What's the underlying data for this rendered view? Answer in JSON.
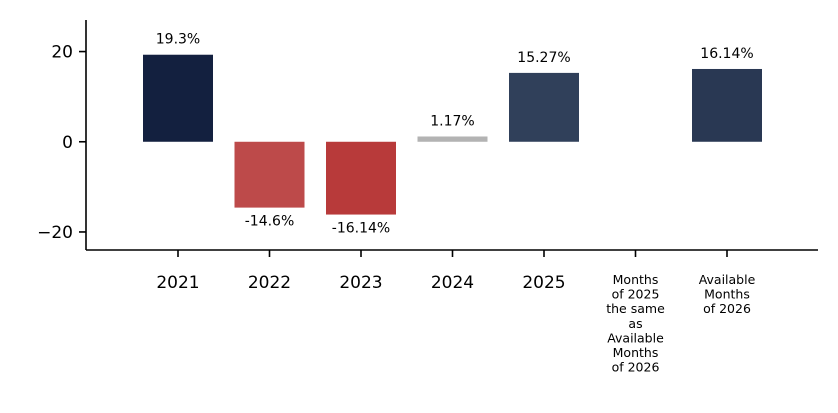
{
  "chart_data": {
    "type": "bar",
    "title": "",
    "xlabel": "",
    "ylabel": "",
    "categories": [
      "2021",
      "2022",
      "2023",
      "2024",
      "2025",
      "Months of 2025 the same as Available Months of 2026",
      "Available Months of 2026"
    ],
    "category_lines": [
      [
        "2021"
      ],
      [
        "2022"
      ],
      [
        "2023"
      ],
      [
        "2024"
      ],
      [
        "2025"
      ],
      [
        "Months",
        "of 2025",
        "the same",
        "as",
        "Available",
        "Months",
        "of 2026"
      ],
      [
        "Available",
        "Months",
        "of 2026"
      ]
    ],
    "values": [
      19.3,
      -14.6,
      -16.14,
      1.17,
      15.27,
      null,
      16.14
    ],
    "value_labels": [
      "19.3%",
      "-14.6%",
      "-16.14%",
      "1.17%",
      "15.27%",
      "",
      "16.14%"
    ],
    "colors": [
      "#13203f",
      "#bd4a4a",
      "#b83a3a",
      "#b3b3b3",
      "#30405a",
      "#ffffff",
      "#293853"
    ],
    "ylim": [
      -24,
      27
    ],
    "yticks": [
      -20,
      0,
      20
    ],
    "ytick_labels": [
      "−20",
      "0",
      "20"
    ],
    "grid": false,
    "legend": "none"
  }
}
